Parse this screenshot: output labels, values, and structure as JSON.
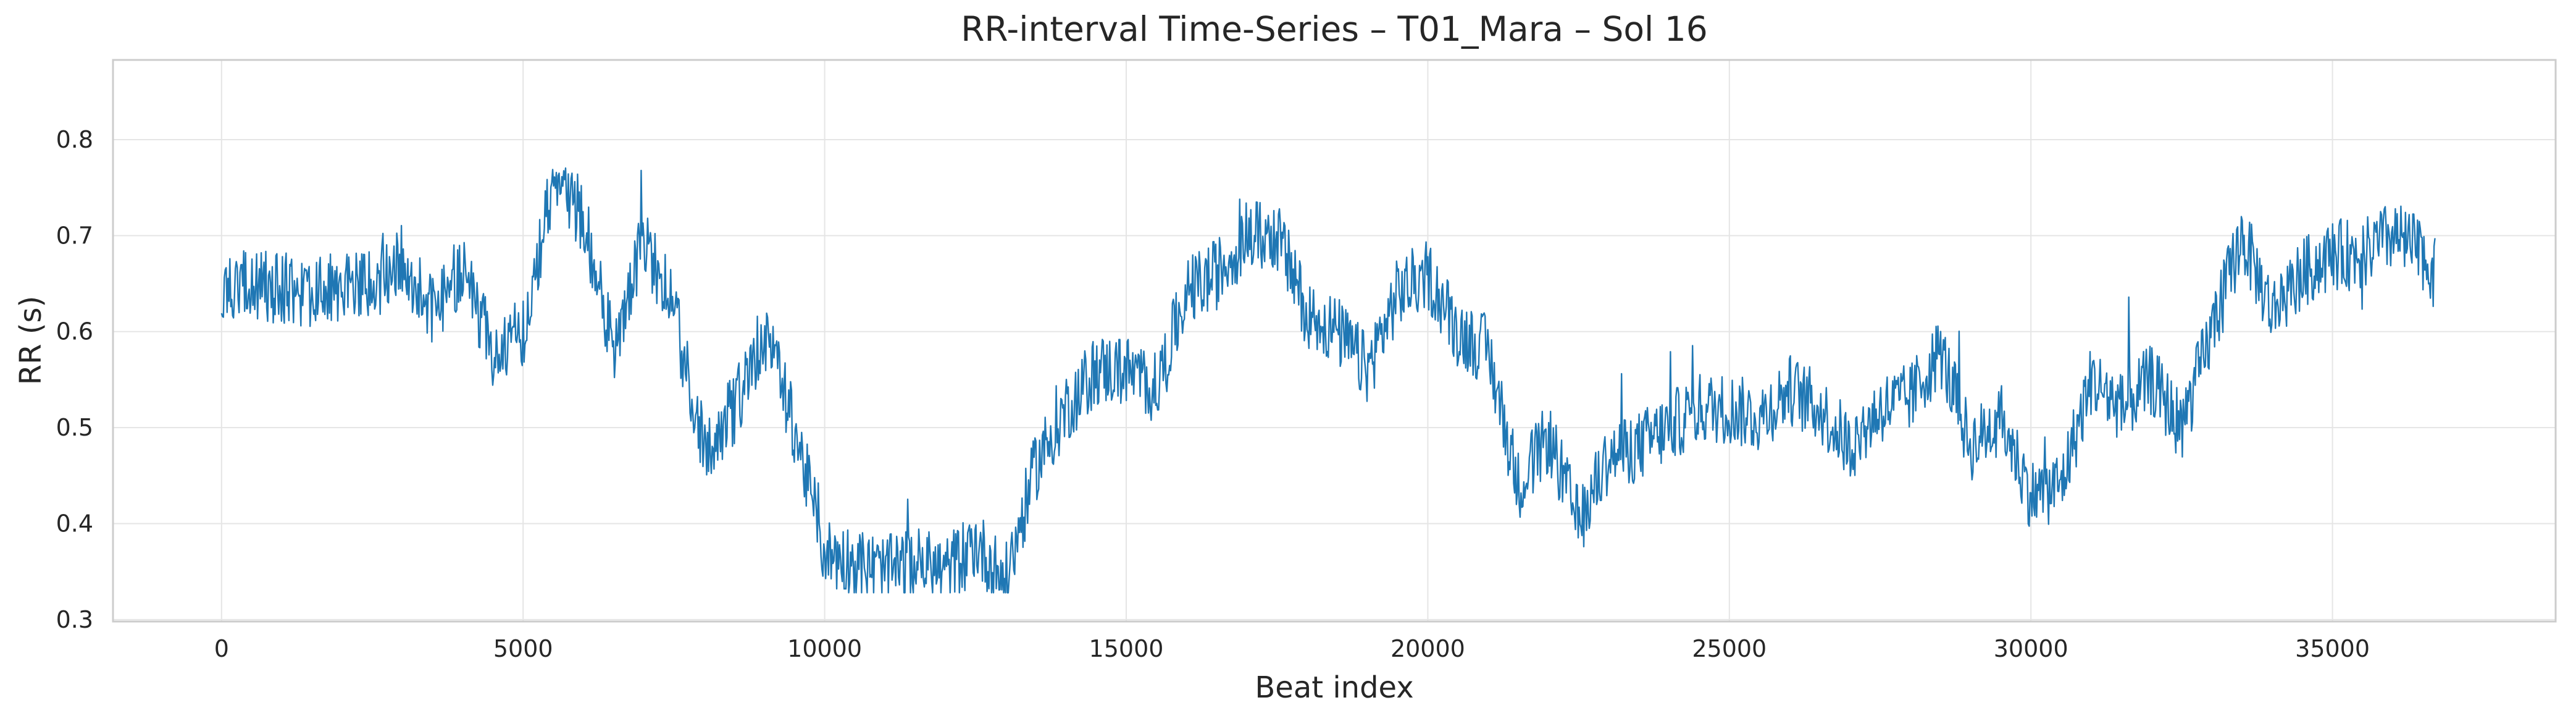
{
  "chart_data": {
    "type": "line",
    "title": "RR-interval Time-Series – T01_Mara – Sol 16",
    "xlabel": "Beat index",
    "ylabel": "RR (s)",
    "xlim": [
      -1800,
      38700
    ],
    "ylim": [
      0.298,
      0.883
    ],
    "xticks": [
      0,
      5000,
      10000,
      15000,
      20000,
      25000,
      30000,
      35000
    ],
    "yticks": [
      0.3,
      0.4,
      0.5,
      0.6,
      0.7,
      0.8
    ],
    "grid": true,
    "colors": {
      "series": "#1f77b4",
      "grid": "#e5e5e5",
      "frame": "#cccccc",
      "text": "#262626"
    },
    "series": [
      {
        "x": [
          0,
          500,
          1000,
          1500,
          2000,
          2500,
          3000,
          3500,
          4000,
          4500,
          5000,
          5500,
          6000,
          6500,
          7000,
          7500,
          8000,
          8500,
          9000,
          9500,
          10000,
          10500,
          11000,
          11500,
          12000,
          12500,
          13000,
          13500,
          14000,
          14500,
          15000,
          15500,
          16000,
          16500,
          17000,
          17500,
          18000,
          18500,
          19000,
          19500,
          20000,
          20500,
          21000,
          21500,
          22000,
          22500,
          23000,
          23500,
          24000,
          24500,
          25000,
          25500,
          26000,
          26500,
          27000,
          27500,
          28000,
          28500,
          29000,
          29500,
          30000,
          30500,
          31000,
          31500,
          32000,
          32500,
          33000,
          33500,
          34000,
          34500,
          35000,
          35500,
          36000,
          36500,
          36700
        ],
        "y": [
          0.64,
          0.65,
          0.645,
          0.64,
          0.65,
          0.645,
          0.67,
          0.62,
          0.66,
          0.58,
          0.6,
          0.76,
          0.72,
          0.58,
          0.7,
          0.62,
          0.48,
          0.52,
          0.6,
          0.5,
          0.37,
          0.36,
          0.35,
          0.36,
          0.35,
          0.38,
          0.34,
          0.46,
          0.52,
          0.56,
          0.56,
          0.54,
          0.64,
          0.66,
          0.7,
          0.7,
          0.62,
          0.6,
          0.56,
          0.64,
          0.66,
          0.6,
          0.58,
          0.44,
          0.49,
          0.4,
          0.47,
          0.48,
          0.5,
          0.52,
          0.52,
          0.51,
          0.54,
          0.52,
          0.48,
          0.52,
          0.53,
          0.58,
          0.48,
          0.51,
          0.43,
          0.44,
          0.55,
          0.52,
          0.55,
          0.5,
          0.6,
          0.7,
          0.62,
          0.66,
          0.68,
          0.68,
          0.7,
          0.68,
          0.66
        ]
      }
    ]
  }
}
